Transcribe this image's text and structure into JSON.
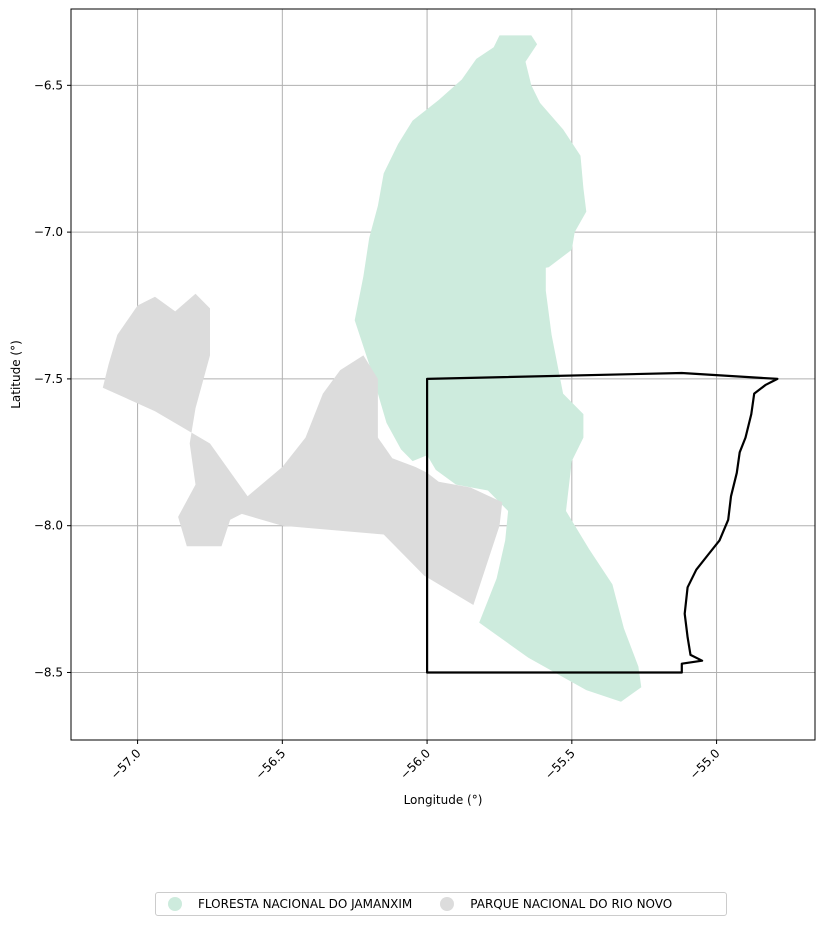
{
  "chart_data": {
    "type": "map",
    "xlabel": "Longitude (°)",
    "ylabel": "Latitude (°)",
    "xlim": [
      -57.23,
      -54.66
    ],
    "ylim": [
      -8.73,
      -6.24
    ],
    "xticks": [
      -57.0,
      -56.5,
      -56.0,
      -55.5,
      -55.0
    ],
    "xtick_labels": [
      "−57.0",
      "−56.5",
      "−56.0",
      "−55.5",
      "−55.0"
    ],
    "yticks": [
      -6.5,
      -7.0,
      -7.5,
      -8.0,
      -8.5
    ],
    "ytick_labels": [
      "−6.5",
      "−7.0",
      "−7.5",
      "−8.0",
      "−8.5"
    ],
    "grid": true,
    "legend_position": "bottom-center",
    "series": [
      {
        "name": "FLORESTA NACIONAL DO JAMANXIM",
        "color": "#cdebdd",
        "polygon": [
          [
            -55.75,
            -6.33
          ],
          [
            -55.64,
            -6.33
          ],
          [
            -55.62,
            -6.36
          ],
          [
            -55.66,
            -6.42
          ],
          [
            -55.64,
            -6.5
          ],
          [
            -55.61,
            -6.56
          ],
          [
            -55.53,
            -6.65
          ],
          [
            -55.47,
            -6.74
          ],
          [
            -55.46,
            -6.85
          ],
          [
            -55.45,
            -6.93
          ],
          [
            -55.49,
            -7.0
          ],
          [
            -55.5,
            -7.06
          ],
          [
            -55.58,
            -7.12
          ],
          [
            -55.82,
            -7.16
          ],
          [
            -55.59,
            -7.12
          ],
          [
            -55.59,
            -7.2
          ],
          [
            -55.57,
            -7.35
          ],
          [
            -55.53,
            -7.55
          ],
          [
            -55.46,
            -7.62
          ],
          [
            -55.46,
            -7.7
          ],
          [
            -55.5,
            -7.78
          ],
          [
            -55.52,
            -7.95
          ],
          [
            -55.44,
            -8.08
          ],
          [
            -55.36,
            -8.2
          ],
          [
            -55.32,
            -8.35
          ],
          [
            -55.27,
            -8.48
          ],
          [
            -55.26,
            -8.55
          ],
          [
            -55.33,
            -8.6
          ],
          [
            -55.45,
            -8.56
          ],
          [
            -55.65,
            -8.45
          ],
          [
            -55.82,
            -8.33
          ],
          [
            -55.76,
            -8.18
          ],
          [
            -55.73,
            -8.05
          ],
          [
            -55.72,
            -7.95
          ],
          [
            -55.79,
            -7.88
          ],
          [
            -55.9,
            -7.86
          ],
          [
            -55.97,
            -7.81
          ],
          [
            -56.0,
            -7.76
          ],
          [
            -56.05,
            -7.78
          ],
          [
            -56.09,
            -7.74
          ],
          [
            -56.14,
            -7.65
          ],
          [
            -56.17,
            -7.55
          ],
          [
            -56.2,
            -7.45
          ],
          [
            -56.25,
            -7.3
          ],
          [
            -56.22,
            -7.15
          ],
          [
            -56.2,
            -7.02
          ],
          [
            -56.17,
            -6.91
          ],
          [
            -56.15,
            -6.8
          ],
          [
            -56.1,
            -6.7
          ],
          [
            -56.05,
            -6.62
          ],
          [
            -55.96,
            -6.55
          ],
          [
            -55.88,
            -6.48
          ],
          [
            -55.83,
            -6.41
          ],
          [
            -55.77,
            -6.37
          ]
        ]
      },
      {
        "name": "PARQUE NACIONAL DO RIO NOVO",
        "color": "#dcdcdc",
        "polygon": [
          [
            -56.22,
            -7.42
          ],
          [
            -56.17,
            -7.5
          ],
          [
            -56.17,
            -7.7
          ],
          [
            -56.12,
            -7.77
          ],
          [
            -56.04,
            -7.8
          ],
          [
            -56.0,
            -7.82
          ],
          [
            -55.96,
            -7.85
          ],
          [
            -55.85,
            -7.87
          ],
          [
            -55.74,
            -7.92
          ],
          [
            -55.75,
            -8.0
          ],
          [
            -55.79,
            -8.12
          ],
          [
            -55.84,
            -8.27
          ],
          [
            -56.01,
            -8.17
          ],
          [
            -56.15,
            -8.03
          ],
          [
            -56.5,
            -8.0
          ],
          [
            -56.64,
            -7.96
          ],
          [
            -56.68,
            -7.98
          ],
          [
            -56.71,
            -8.07
          ],
          [
            -56.83,
            -8.07
          ],
          [
            -56.86,
            -7.97
          ],
          [
            -56.8,
            -7.86
          ],
          [
            -56.82,
            -7.72
          ],
          [
            -56.8,
            -7.6
          ],
          [
            -56.75,
            -7.42
          ],
          [
            -56.75,
            -7.26
          ],
          [
            -56.8,
            -7.21
          ],
          [
            -56.87,
            -7.27
          ],
          [
            -56.94,
            -7.22
          ],
          [
            -57.0,
            -7.25
          ],
          [
            -57.07,
            -7.35
          ],
          [
            -57.1,
            -7.45
          ],
          [
            -57.12,
            -7.53
          ],
          [
            -56.94,
            -7.61
          ],
          [
            -56.75,
            -7.72
          ],
          [
            -56.62,
            -7.9
          ],
          [
            -56.5,
            -7.8
          ],
          [
            -56.42,
            -7.7
          ],
          [
            -56.36,
            -7.55
          ],
          [
            -56.3,
            -7.47
          ]
        ]
      }
    ],
    "outline": {
      "color": "#000000",
      "polygon": [
        [
          -56.0,
          -7.5
        ],
        [
          -55.12,
          -7.48
        ],
        [
          -54.79,
          -7.5
        ],
        [
          -54.83,
          -7.52
        ],
        [
          -54.87,
          -7.55
        ],
        [
          -54.88,
          -7.62
        ],
        [
          -54.9,
          -7.7
        ],
        [
          -54.92,
          -7.75
        ],
        [
          -54.93,
          -7.82
        ],
        [
          -54.95,
          -7.9
        ],
        [
          -54.96,
          -7.98
        ],
        [
          -54.99,
          -8.05
        ],
        [
          -55.03,
          -8.1
        ],
        [
          -55.07,
          -8.15
        ],
        [
          -55.1,
          -8.21
        ],
        [
          -55.11,
          -8.3
        ],
        [
          -55.1,
          -8.38
        ],
        [
          -55.09,
          -8.44
        ],
        [
          -55.05,
          -8.46
        ],
        [
          -55.12,
          -8.47
        ],
        [
          -55.12,
          -8.5
        ],
        [
          -56.0,
          -8.5
        ]
      ]
    }
  },
  "legend": {
    "items": [
      {
        "label": "FLORESTA NACIONAL DO JAMANXIM",
        "color": "#cdebdd"
      },
      {
        "label": "PARQUE NACIONAL DO RIO NOVO",
        "color": "#dcdcdc"
      }
    ]
  }
}
